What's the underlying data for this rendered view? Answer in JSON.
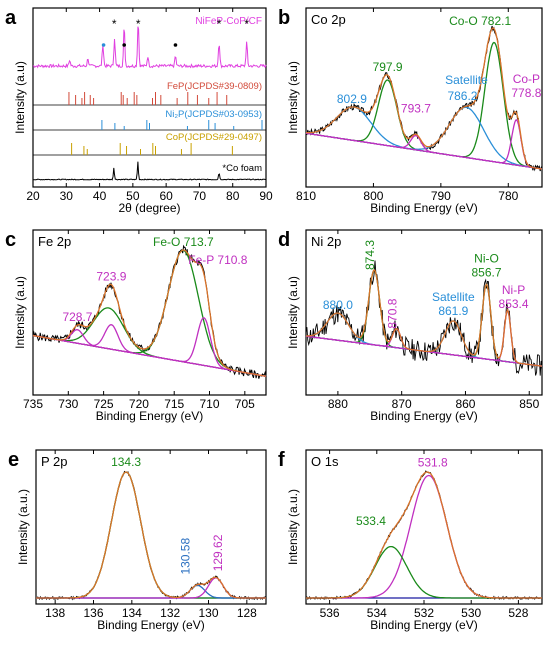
{
  "chart_data": [
    {
      "id": "a",
      "type": "line",
      "letter": "a",
      "panel_title": "",
      "xlabel": "2θ (degree)",
      "ylabel": "Intensity (a.u)",
      "xlim": [
        20,
        90
      ],
      "xticks": [
        20,
        30,
        40,
        50,
        60,
        70,
        80,
        90
      ],
      "yticks_shown": false,
      "series": [
        {
          "name": "NiFeP-CoP/CF",
          "color": "#e040e0"
        },
        {
          "name": "FeP(JCPDS#39-0809)",
          "color": "#d24a3a",
          "x": [
            30.8,
            32.8,
            34.7,
            35.5,
            37.2,
            38.2,
            46.5,
            47.1,
            48.3,
            50.4,
            51.2,
            55.9,
            56.8,
            58.4,
            63.3,
            66.5,
            69.4,
            72.8,
            75.3,
            78.2
          ]
        },
        {
          "name": "Ni₂P(JCPDS#03-0953)",
          "color": "#2a8fd8",
          "x": [
            40.7,
            44.6,
            47.4,
            54.2,
            55.0,
            66.4,
            72.8,
            74.7,
            80.3,
            88.8
          ]
        },
        {
          "name": "CoP(JCPDS#29-0497)",
          "color": "#c8a000",
          "x": [
            31.6,
            35.3,
            36.3,
            46.2,
            48.1,
            52.3,
            56.0,
            56.8,
            64.6,
            67.5,
            79.9
          ]
        },
        {
          "name": "*Co foam",
          "color": "#000000"
        }
      ],
      "peak_markers": [
        {
          "x": 41.2,
          "type": "dot",
          "color": "#2a8fd8"
        },
        {
          "x": 44.4,
          "type": "star"
        },
        {
          "x": 47.4,
          "type": "dot",
          "color": "#000"
        },
        {
          "x": 51.6,
          "type": "star"
        },
        {
          "x": 62.8,
          "type": "dot",
          "color": "#000"
        },
        {
          "x": 75.9,
          "type": "star"
        },
        {
          "x": 84.2,
          "type": "star"
        }
      ]
    },
    {
      "id": "b",
      "type": "line",
      "letter": "b",
      "panel_title": "Co 2p",
      "xlabel": "Binding Energy (eV)",
      "ylabel": "Intensity (a.u)",
      "xlim": [
        810,
        775
      ],
      "xticks": [
        810,
        800,
        790,
        780
      ],
      "annotations": [
        {
          "text": "Co-O 782.1",
          "color": "#1a8a1a",
          "x": 782.1
        },
        {
          "text": "797.9",
          "color": "#1a8a1a",
          "x": 797.9
        },
        {
          "text": "802.9",
          "color": "#2a8fd8",
          "x": 802.9
        },
        {
          "text": "Satellite",
          "color": "#2a8fd8",
          "x": 786.2
        },
        {
          "text": "786.2",
          "color": "#2a8fd8",
          "x": 786.2
        },
        {
          "text": "793.7",
          "color": "#c030c0",
          "x": 793.7
        },
        {
          "text": "Co-P",
          "color": "#c030c0",
          "x": 778.8
        },
        {
          "text": "778.8",
          "color": "#c030c0",
          "x": 778.8
        }
      ],
      "peaks": [
        {
          "center": 782.1,
          "height": 1.0,
          "fwhm": 3.2,
          "color": "#1a8a1a"
        },
        {
          "center": 797.9,
          "height": 0.55,
          "fwhm": 3.2,
          "color": "#1a8a1a"
        },
        {
          "center": 786.2,
          "height": 0.42,
          "fwhm": 6.0,
          "color": "#2a8fd8"
        },
        {
          "center": 802.9,
          "height": 0.28,
          "fwhm": 6.0,
          "color": "#2a8fd8"
        },
        {
          "center": 778.8,
          "height": 0.38,
          "fwhm": 1.6,
          "color": "#c030c0"
        },
        {
          "center": 793.7,
          "height": 0.12,
          "fwhm": 1.8,
          "color": "#c030c0"
        }
      ],
      "background": [
        0.3,
        0.0
      ]
    },
    {
      "id": "c",
      "type": "line",
      "letter": "c",
      "panel_title": "Fe 2p",
      "xlabel": "Binding Energy (eV)",
      "ylabel": "Intensity (a.u)",
      "xlim": [
        735,
        702
      ],
      "xticks": [
        735,
        730,
        725,
        720,
        715,
        710,
        705
      ],
      "annotations": [
        {
          "text": "Fe-O 713.7",
          "color": "#1a8a1a",
          "x": 713.7
        },
        {
          "text": "723.9",
          "color": "#c030c0",
          "x": 723.9
        },
        {
          "text": "728.7",
          "color": "#c030c0",
          "x": 728.7
        },
        {
          "text": "Fe-P 710.8",
          "color": "#c030c0",
          "x": 710.8
        }
      ],
      "peaks": [
        {
          "center": 713.7,
          "height": 0.82,
          "fwhm": 5.0,
          "color": "#1a8a1a"
        },
        {
          "center": 724.3,
          "height": 0.3,
          "fwhm": 5.0,
          "color": "#1a8a1a"
        },
        {
          "center": 710.8,
          "height": 0.35,
          "fwhm": 2.2,
          "color": "#c030c0"
        },
        {
          "center": 723.9,
          "height": 0.18,
          "fwhm": 2.2,
          "color": "#c030c0"
        },
        {
          "center": 728.7,
          "height": 0.1,
          "fwhm": 2.0,
          "color": "#c030c0"
        }
      ],
      "background": [
        0.32,
        0.02
      ]
    },
    {
      "id": "d",
      "type": "line",
      "letter": "d",
      "panel_title": "Ni 2p",
      "xlabel": "Binding Energy (eV)",
      "ylabel": "Intensity (a.u)",
      "xlim": [
        885,
        848
      ],
      "xticks": [
        880,
        870,
        860,
        850
      ],
      "annotations": [
        {
          "text": "880.0",
          "color": "#2a8fd8",
          "x": 880.0
        },
        {
          "text": "874.3",
          "color": "#1a8a1a",
          "x": 874.3
        },
        {
          "text": "870.8",
          "color": "#c030c0",
          "x": 870.8
        },
        {
          "text": "Satellite",
          "color": "#2a8fd8",
          "x": 861.9
        },
        {
          "text": "861.9",
          "color": "#2a8fd8",
          "x": 861.9
        },
        {
          "text": "Ni-O",
          "color": "#1a8a1a",
          "x": 856.7
        },
        {
          "text": "856.7",
          "color": "#1a8a1a",
          "x": 856.7
        },
        {
          "text": "Ni-P",
          "color": "#c030c0",
          "x": 853.4
        },
        {
          "text": "853.4",
          "color": "#c030c0",
          "x": 853.4
        }
      ],
      "peaks": [
        {
          "center": 856.7,
          "height": 0.55,
          "fwhm": 1.6,
          "color": "#1a8a1a"
        },
        {
          "center": 874.3,
          "height": 0.55,
          "fwhm": 2.0,
          "color": "#1a8a1a"
        },
        {
          "center": 861.9,
          "height": 0.25,
          "fwhm": 3.0,
          "color": "#2a8fd8"
        },
        {
          "center": 880.0,
          "height": 0.2,
          "fwhm": 4.0,
          "color": "#2a8fd8"
        },
        {
          "center": 853.4,
          "height": 0.38,
          "fwhm": 1.2,
          "color": "#c030c0"
        },
        {
          "center": 870.8,
          "height": 0.14,
          "fwhm": 1.5,
          "color": "#c030c0"
        }
      ],
      "background": [
        0.3,
        0.08
      ]
    },
    {
      "id": "e",
      "type": "line",
      "letter": "e",
      "panel_title": "P 2p",
      "xlabel": "Binding Energy (eV)",
      "ylabel": "Intensity (a.u.)",
      "xlim": [
        139,
        127
      ],
      "xticks": [
        138,
        136,
        134,
        132,
        130,
        128
      ],
      "annotations": [
        {
          "text": "134.3",
          "color": "#1a8a1a",
          "x": 134.3
        },
        {
          "text": "130.58",
          "color": "#2a6fc0",
          "x": 130.58
        },
        {
          "text": "129.62",
          "color": "#c030c0",
          "x": 129.62
        }
      ],
      "peaks": [
        {
          "center": 134.3,
          "height": 1.0,
          "fwhm": 1.8,
          "color": "#1a8a1a"
        },
        {
          "center": 130.58,
          "height": 0.1,
          "fwhm": 0.9,
          "color": "#2a6fc0"
        },
        {
          "center": 129.62,
          "height": 0.16,
          "fwhm": 0.9,
          "color": "#c030c0"
        }
      ],
      "background": [
        0.0,
        0.0
      ]
    },
    {
      "id": "f",
      "type": "line",
      "letter": "f",
      "panel_title": "O 1s",
      "xlabel": "Binding Energy (eV)",
      "ylabel": "Intensity (a.u.)",
      "xlim": [
        537,
        527
      ],
      "xticks": [
        536,
        534,
        532,
        530,
        528
      ],
      "annotations": [
        {
          "text": "531.8",
          "color": "#c030c0",
          "x": 531.8
        },
        {
          "text": "533.4",
          "color": "#1a8a1a",
          "x": 533.4
        }
      ],
      "peaks": [
        {
          "center": 531.8,
          "height": 1.0,
          "fwhm": 1.8,
          "color": "#c030c0"
        },
        {
          "center": 533.4,
          "height": 0.42,
          "fwhm": 1.6,
          "color": "#1a8a1a"
        }
      ],
      "background": [
        0.0,
        0.0
      ]
    }
  ]
}
